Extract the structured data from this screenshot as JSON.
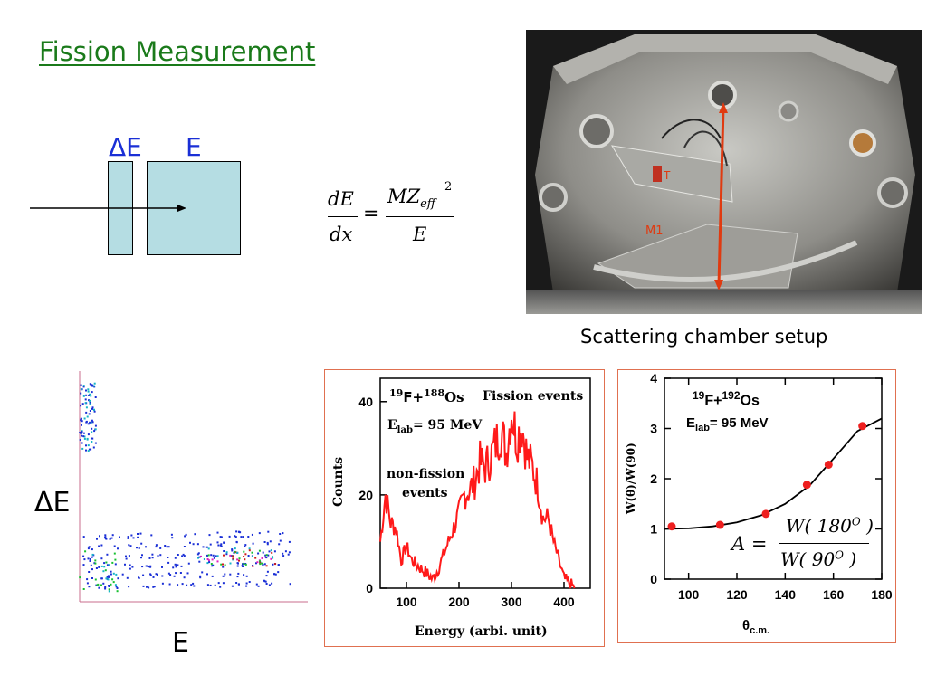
{
  "slide": {
    "title": "Fission Measurement",
    "detector": {
      "de_label": "ΔE",
      "e_label": "E"
    },
    "formula": {
      "lhs_num": "dE",
      "lhs_den": "dx",
      "rhs_num": "MZ",
      "rhs_sub": "eff",
      "rhs_sup": "2",
      "rhs_den": "E"
    },
    "photo": {
      "caption": "Scattering chamber setup",
      "marker_1": "T",
      "marker_2": "M1"
    },
    "scatter": {
      "ylabel": "ΔE",
      "xlabel": "E"
    },
    "spectrum": {
      "reaction_a": "19",
      "reaction_b": "F+",
      "reaction_c": "188",
      "reaction_d": "Os",
      "energy_pre": "E",
      "energy_sub": "lab",
      "energy_post": "= 95 MeV",
      "fission_label": "Fission events",
      "nonfission_label_1": "non-fission",
      "nonfission_label_2": "events",
      "ylabel": "Counts",
      "xlabel": "Energy (arbi. unit)",
      "yticks": [
        "0",
        "20",
        "40"
      ],
      "xticks": [
        "100",
        "200",
        "300",
        "400"
      ]
    },
    "angular": {
      "reaction_a": "19",
      "reaction_b": "F+",
      "reaction_c": "192",
      "reaction_d": "Os",
      "energy_pre": "E",
      "energy_sub": "lab",
      "energy_post": "= 95 MeV",
      "ylabel": "W(θ)/W(90)",
      "xlabel_pre": "θ",
      "xlabel_sub": "c.m.",
      "yticks": [
        "0",
        "1",
        "2",
        "3",
        "4"
      ],
      "xticks": [
        "100",
        "120",
        "140",
        "160",
        "180"
      ],
      "eq_lhs": "A =",
      "eq_num": "W( 180",
      "eq_num_sup": "O",
      "eq_num_close": " )",
      "eq_den": "W( 90",
      "eq_den_sup": "O",
      "eq_den_close": " )"
    }
  },
  "chart_data": [
    {
      "type": "line",
      "title": "",
      "xlabel": "Energy (arbi. unit)",
      "ylabel": "Counts",
      "xlim": [
        50,
        450
      ],
      "ylim": [
        0,
        45
      ],
      "series": [
        {
          "name": "",
          "x": [
            50,
            60,
            70,
            80,
            90,
            100,
            110,
            120,
            130,
            140,
            150,
            160,
            170,
            180,
            190,
            200,
            210,
            220,
            230,
            240,
            250,
            260,
            270,
            280,
            290,
            300,
            310,
            320,
            330,
            340,
            350,
            360,
            370,
            380,
            390,
            400,
            410,
            420
          ],
          "y": [
            10,
            20,
            14,
            13,
            6,
            9,
            6,
            5,
            4,
            3,
            2,
            4,
            7,
            10,
            13,
            16,
            20,
            21,
            23,
            27,
            26,
            28,
            31,
            34,
            29,
            38,
            32,
            35,
            28,
            26,
            22,
            15,
            15,
            10,
            6,
            2,
            1,
            0
          ]
        }
      ]
    },
    {
      "type": "scatter",
      "title": "",
      "xlabel": "θc.m.",
      "ylabel": "W(θ)/W(90)",
      "xlim": [
        90,
        180
      ],
      "ylim": [
        0,
        4
      ],
      "series": [
        {
          "name": "",
          "x": [
            93,
            113,
            132,
            149,
            158,
            172
          ],
          "y": [
            1.05,
            1.08,
            1.3,
            1.88,
            2.28,
            3.05
          ]
        }
      ],
      "fit_curve": {
        "x": [
          90,
          100,
          110,
          120,
          130,
          140,
          150,
          160,
          170,
          180
        ],
        "y": [
          1.0,
          1.01,
          1.05,
          1.13,
          1.27,
          1.5,
          1.86,
          2.4,
          2.95,
          3.2
        ]
      }
    }
  ]
}
